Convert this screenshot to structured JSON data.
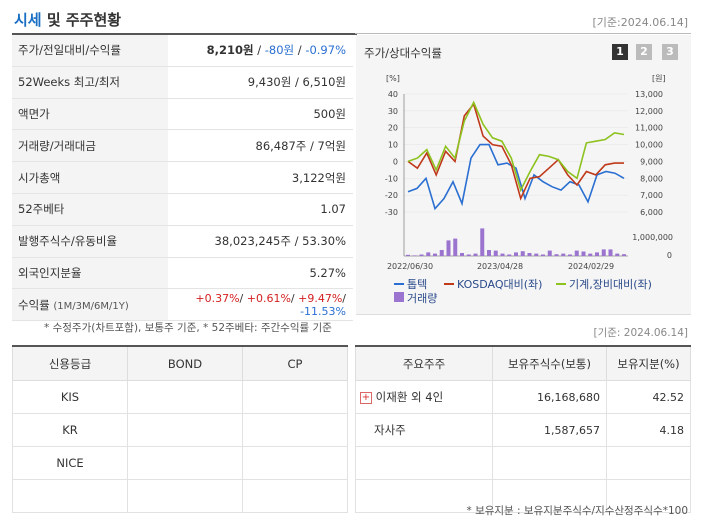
{
  "header": {
    "title_accent": "시세",
    "title_rest": "및 주주현황",
    "date": "[기준:2024.06.14]"
  },
  "info_rows": [
    {
      "label": "주가/전일대비/수익률",
      "price": "8,210원",
      "sep1": " / ",
      "change": "-80원",
      "sep2": " / ",
      "rate": "-0.97%"
    },
    {
      "label": "52Weeks 최고/최저",
      "value": "9,430원 / 6,510원"
    },
    {
      "label": "액면가",
      "value": "500원"
    },
    {
      "label": "거래량/거래대금",
      "value": "86,487주 / 7억원"
    },
    {
      "label": "시가총액",
      "value": "3,122억원"
    },
    {
      "label": "52주베타",
      "value": "1.07"
    },
    {
      "label": "발행주식수/유동비율",
      "value": "38,023,245주 / 53.30%"
    },
    {
      "label": "외국인지분율",
      "value": "5.27%"
    },
    {
      "label": "수익률",
      "label_sub": "(1M/3M/6M/1Y)",
      "r1": "+0.37%",
      "r2": "+0.61%",
      "r3": "+9.47%",
      "r4": "-11.53%"
    }
  ],
  "chart_panel": {
    "title": "주가/상대수익률",
    "pages": [
      "1",
      "2",
      "3"
    ]
  },
  "chart_data": {
    "type": "line",
    "left_axis_unit": "[%]",
    "right_axis_unit": "[원]",
    "y_left_ticks": [
      "40",
      "30",
      "20",
      "10",
      "0",
      "-10",
      "-20",
      "-30"
    ],
    "y_right_ticks": [
      "13,000",
      "12,000",
      "11,000",
      "10,000",
      "9,000",
      "8,000",
      "7,000",
      "6,000"
    ],
    "volume_ticks": [
      "1,000,000",
      "0"
    ],
    "x_labels": [
      "2022/06/30",
      "2023/04/28",
      "2024/02/29"
    ],
    "ylim_left": [
      -30,
      40
    ],
    "series": [
      {
        "name": "톱텍",
        "color": "#2a6fd1",
        "values": [
          -18,
          -16,
          -10,
          -28,
          -22,
          -12,
          -25,
          2,
          10,
          10,
          -2,
          -1,
          -4,
          -22,
          -8,
          -12,
          -15,
          -17,
          -12,
          -14,
          -24,
          -8,
          -6,
          -7,
          -10
        ]
      },
      {
        "name": "KOSDAQ대비(좌)",
        "color": "#c0391b",
        "values": [
          0,
          -4,
          5,
          -8,
          6,
          0,
          27,
          34,
          15,
          10,
          9,
          -2,
          -22,
          -10,
          -9,
          -4,
          1,
          -8,
          -14,
          -6,
          -8,
          -2,
          -1,
          -1
        ]
      },
      {
        "name": "기계,장비대비(좌)",
        "color": "#8dc21f",
        "values": [
          0,
          2,
          7,
          -5,
          9,
          2,
          24,
          35,
          22,
          14,
          12,
          2,
          -17,
          -6,
          4,
          3,
          1,
          -6,
          -10,
          11,
          12,
          13,
          17,
          16
        ]
      }
    ],
    "volume": {
      "name": "거래량",
      "color": "#9b74cf",
      "values": [
        0.04,
        0.02,
        0.05,
        0.12,
        0.08,
        0.2,
        0.52,
        0.58,
        0.1,
        0.05,
        0.08,
        0.92,
        0.2,
        0.18,
        0.08,
        0.05,
        0.12,
        0.16,
        0.1,
        0.08,
        0.05,
        0.18,
        0.06,
        0.08,
        0.05,
        0.18,
        0.15,
        0.08,
        0.12,
        0.22,
        0.22,
        0.08,
        0.06
      ]
    }
  },
  "footnote_left": "* 수정주가(차트포함), 보통주 기준, * 52주베타: 주간수익률 기준",
  "footnote_date": "[기준: 2024.06.14]",
  "credit_table": {
    "headers": [
      "신용등급",
      "BOND",
      "CP"
    ],
    "rows": [
      [
        "KIS",
        "",
        ""
      ],
      [
        "KR",
        "",
        ""
      ],
      [
        "NICE",
        "",
        ""
      ],
      [
        "",
        "",
        ""
      ]
    ]
  },
  "holders_table": {
    "headers": [
      "주요주주",
      "보유주식수(보통)",
      "보유지분(%)"
    ],
    "rows": [
      {
        "name": "이재환 외 4인",
        "shares": "16,168,680",
        "pct": "42.52",
        "expand": "+"
      },
      {
        "name": "자사주",
        "shares": "1,587,657",
        "pct": "4.18",
        "expand": ""
      }
    ]
  },
  "footnote_bottom": "* 보유지분 : 보유지분주식수/지수산정주식수*100"
}
